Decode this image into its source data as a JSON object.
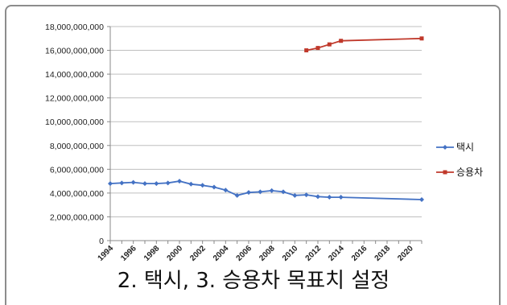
{
  "caption": "2. 택시, 3. 승용차 목표치 설정",
  "chart_data": {
    "type": "line",
    "title": "",
    "xlabel": "",
    "ylabel": "",
    "ylim": [
      0,
      18000000000
    ],
    "xlim": [
      1994,
      2021
    ],
    "yticks": [
      0,
      2000000000,
      4000000000,
      6000000000,
      8000000000,
      10000000000,
      12000000000,
      14000000000,
      16000000000,
      18000000000
    ],
    "ytick_labels": [
      "0",
      "2,000,000,000",
      "4,000,000,000",
      "6,000,000,000",
      "8,000,000,000",
      "10,000,000,000",
      "12,000,000,000",
      "14,000,000,000",
      "16,000,000,000",
      "18,000,000,000"
    ],
    "xtick_labels": [
      "1994",
      "1996",
      "1998",
      "2000",
      "2002",
      "2004",
      "2006",
      "2008",
      "2010",
      "2012",
      "2014",
      "2016",
      "2018",
      "2020"
    ],
    "grid": true,
    "legend": "right",
    "series": [
      {
        "name": "택시",
        "color": "#4472c4",
        "marker": "diamond",
        "points": [
          [
            1994,
            4800000000
          ],
          [
            1995,
            4850000000
          ],
          [
            1996,
            4900000000
          ],
          [
            1997,
            4800000000
          ],
          [
            1998,
            4800000000
          ],
          [
            1999,
            4850000000
          ],
          [
            2000,
            5000000000
          ],
          [
            2001,
            4750000000
          ],
          [
            2002,
            4650000000
          ],
          [
            2003,
            4500000000
          ],
          [
            2004,
            4250000000
          ],
          [
            2005,
            3800000000
          ],
          [
            2006,
            4050000000
          ],
          [
            2007,
            4100000000
          ],
          [
            2008,
            4200000000
          ],
          [
            2009,
            4100000000
          ],
          [
            2010,
            3800000000
          ],
          [
            2011,
            3850000000
          ],
          [
            2012,
            3700000000
          ],
          [
            2013,
            3650000000
          ],
          [
            2014,
            3650000000
          ],
          [
            2021,
            3450000000
          ]
        ]
      },
      {
        "name": "승용차",
        "color": "#c0392b",
        "marker": "square",
        "points": [
          [
            2011,
            16000000000
          ],
          [
            2012,
            16200000000
          ],
          [
            2013,
            16500000000
          ],
          [
            2014,
            16800000000
          ],
          [
            2021,
            17000000000
          ]
        ]
      }
    ]
  }
}
